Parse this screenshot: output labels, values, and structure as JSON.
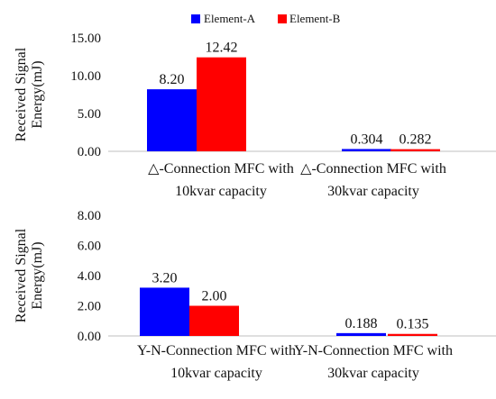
{
  "legend": {
    "position": "top-center",
    "items": [
      {
        "name": "Element-A",
        "color": "#0000ff"
      },
      {
        "name": "Element-B",
        "color": "#ff0000"
      }
    ]
  },
  "chart_data": [
    {
      "type": "bar",
      "ylabel_lines": [
        "Received Signal",
        "Energy(mJ)"
      ],
      "ylim": [
        0,
        15
      ],
      "yticks": [
        "0.00",
        "5.00",
        "10.00",
        "15.00"
      ],
      "ytick_values": [
        0,
        5,
        10,
        15
      ],
      "grid": false,
      "categories": [
        [
          "△-Connection MFC with",
          "10kvar capacity"
        ],
        [
          "△-Connection MFC with",
          "30kvar capacity"
        ]
      ],
      "series": [
        {
          "name": "Element-A",
          "values": [
            8.2,
            0.304
          ],
          "labels": [
            "8.20",
            "0.304"
          ]
        },
        {
          "name": "Element-B",
          "values": [
            12.42,
            0.282
          ],
          "labels": [
            "12.42",
            "0.282"
          ]
        }
      ]
    },
    {
      "type": "bar",
      "ylabel_lines": [
        "Received Signal",
        "Energy(mJ)"
      ],
      "ylim": [
        0,
        8
      ],
      "yticks": [
        "0.00",
        "2.00",
        "4.00",
        "6.00",
        "8.00"
      ],
      "ytick_values": [
        0,
        2,
        4,
        6,
        8
      ],
      "grid": false,
      "categories": [
        [
          "Y-N-Connection MFC with",
          "10kvar capacity"
        ],
        [
          "Y-N-Connection MFC with",
          "30kvar capacity"
        ]
      ],
      "series": [
        {
          "name": "Element-A",
          "values": [
            3.2,
            0.188
          ],
          "labels": [
            "3.20",
            "0.188"
          ]
        },
        {
          "name": "Element-B",
          "values": [
            2.0,
            0.135
          ],
          "labels": [
            "2.00",
            "0.135"
          ]
        }
      ]
    }
  ]
}
